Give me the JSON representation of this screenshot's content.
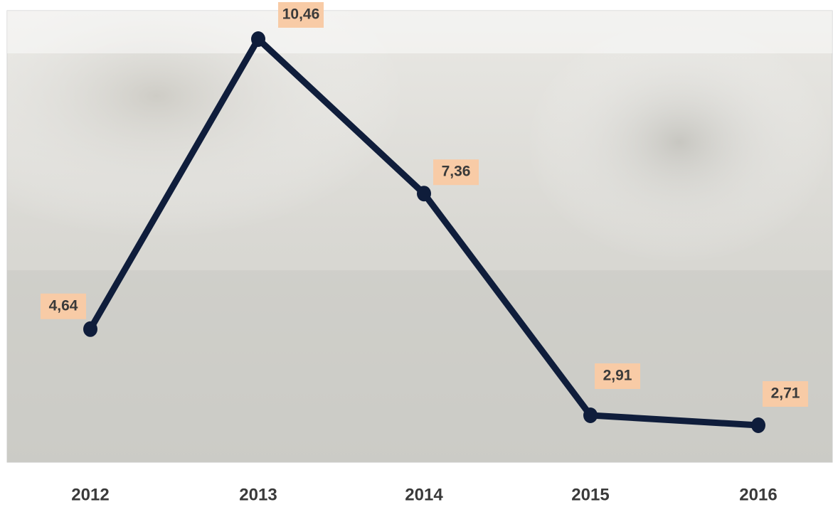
{
  "chart_data": {
    "type": "line",
    "categories": [
      "2012",
      "2013",
      "2014",
      "2015",
      "2016"
    ],
    "values": [
      4.64,
      10.46,
      7.36,
      2.91,
      2.71
    ],
    "value_labels": [
      "4,64",
      "10,46",
      "7,36",
      "2,91",
      "2,71"
    ],
    "color": "#0f1d3b",
    "label_color": "#f8cba6"
  }
}
